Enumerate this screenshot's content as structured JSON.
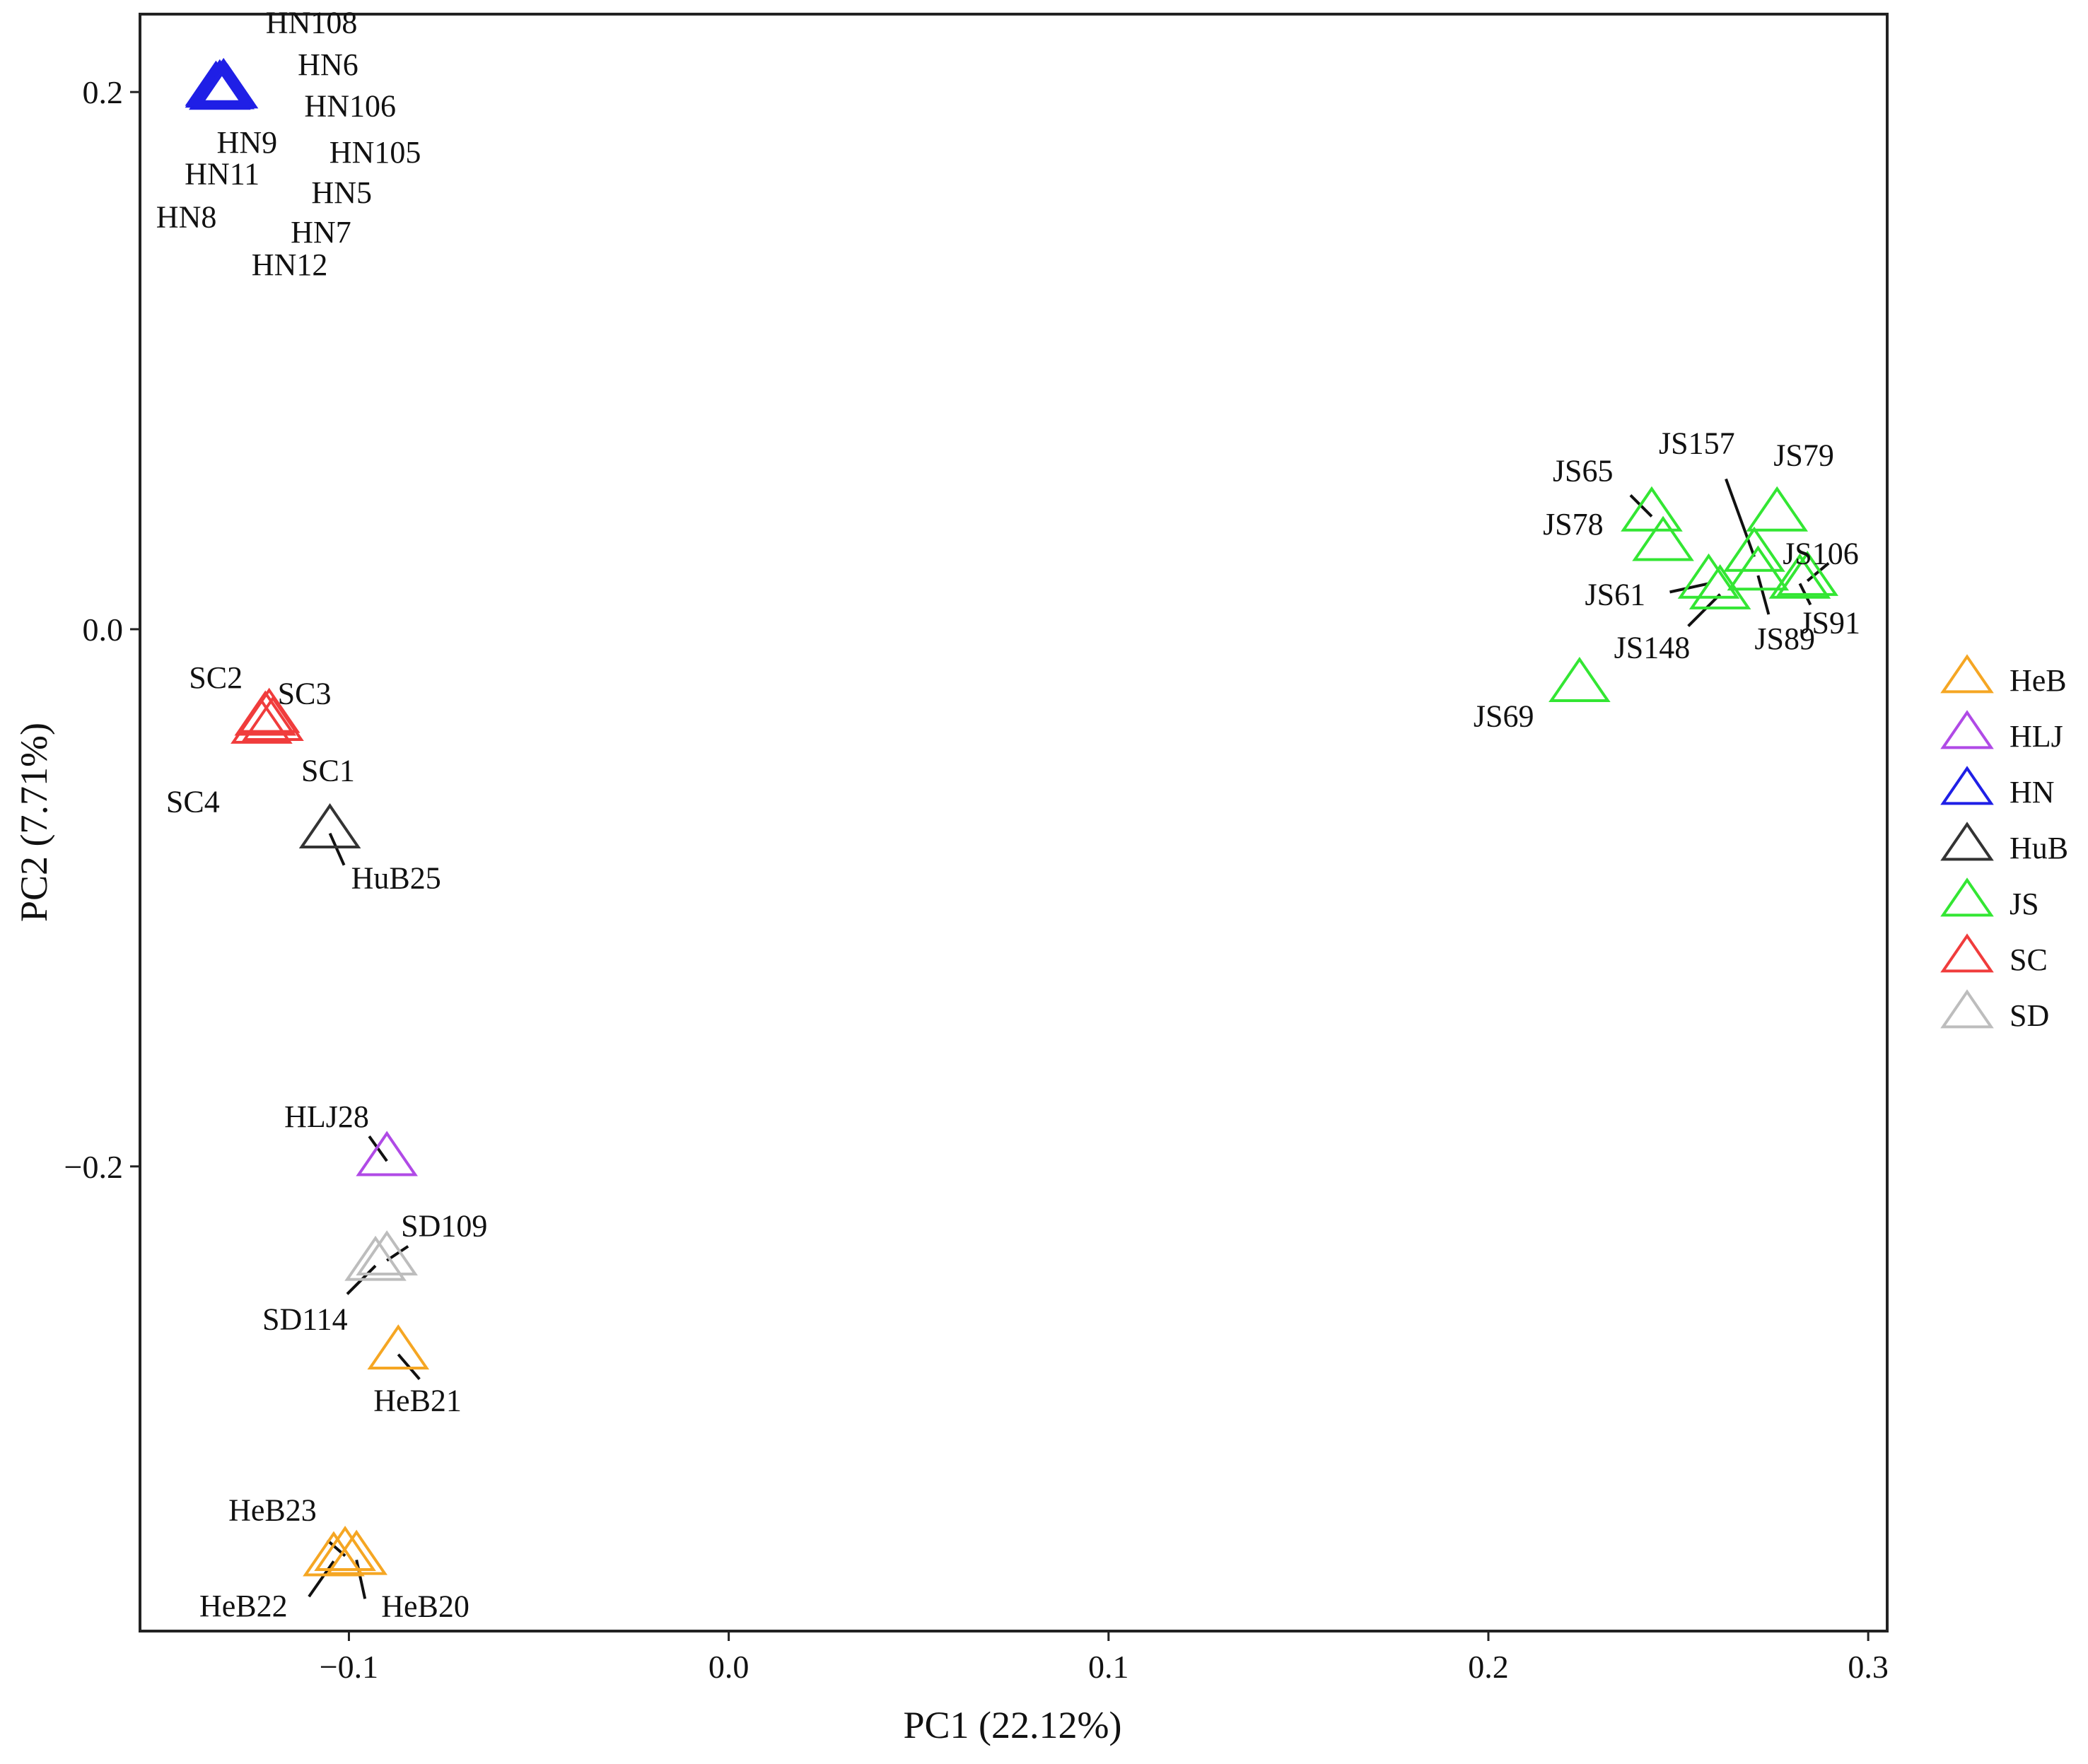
{
  "chart_data": {
    "type": "scatter",
    "title": "",
    "xlabel": "PC1 (22.12%)",
    "ylabel": "PC2 (7.71%)",
    "xlim": [
      -0.155,
      0.305
    ],
    "ylim": [
      -0.373,
      0.229
    ],
    "xticks": [
      -0.1,
      0.0,
      0.1,
      0.2,
      0.3
    ],
    "xtick_labels": [
      "−0.1",
      "0.0",
      "0.1",
      "0.2",
      "0.3"
    ],
    "yticks": [
      -0.2,
      0.0,
      0.2
    ],
    "ytick_labels": [
      "−0.2",
      "0.0",
      "0.2"
    ],
    "grid": false,
    "marker": "open-triangle",
    "legend_position": "right-center",
    "series": [
      {
        "name": "HeB",
        "color": "#f5a623",
        "points": [
          {
            "label": "HeB21",
            "x": -0.087,
            "y": -0.27
          },
          {
            "label": "HeB23",
            "x": -0.101,
            "y": -0.345
          },
          {
            "label": "HeB22",
            "x": -0.104,
            "y": -0.347
          },
          {
            "label": "HeB20",
            "x": -0.098,
            "y": -0.3465
          }
        ]
      },
      {
        "name": "HLJ",
        "color": "#b04ae6",
        "points": [
          {
            "label": "HLJ28",
            "x": -0.09,
            "y": -0.198
          }
        ]
      },
      {
        "name": "HN",
        "color": "#1f1fe6",
        "points": [
          {
            "label": "HN108",
            "x": -0.134,
            "y": 0.201
          },
          {
            "label": "HN6",
            "x": -0.133,
            "y": 0.2
          },
          {
            "label": "HN106",
            "x": -0.135,
            "y": 0.2005
          },
          {
            "label": "HN9",
            "x": -0.132,
            "y": 0.1995
          },
          {
            "label": "HN105",
            "x": -0.134,
            "y": 0.199
          },
          {
            "label": "HN11",
            "x": -0.133,
            "y": 0.2015
          },
          {
            "label": "HN5",
            "x": -0.135,
            "y": 0.1998
          },
          {
            "label": "HN8",
            "x": -0.134,
            "y": 0.2002
          },
          {
            "label": "HN7",
            "x": -0.133,
            "y": 0.1992
          },
          {
            "label": "HN12",
            "x": -0.134,
            "y": 0.2008
          }
        ]
      },
      {
        "name": "HuB",
        "color": "#333333",
        "points": [
          {
            "label": "HuB25",
            "x": -0.105,
            "y": -0.076
          }
        ]
      },
      {
        "name": "JS",
        "color": "#33e633",
        "points": [
          {
            "label": "JS65",
            "x": 0.243,
            "y": 0.042
          },
          {
            "label": "JS157",
            "x": 0.27,
            "y": 0.027
          },
          {
            "label": "JS79",
            "x": 0.276,
            "y": 0.042
          },
          {
            "label": "JS78",
            "x": 0.246,
            "y": 0.031
          },
          {
            "label": "JS106",
            "x": 0.284,
            "y": 0.018
          },
          {
            "label": "JS61",
            "x": 0.258,
            "y": 0.017
          },
          {
            "label": "JS148",
            "x": 0.261,
            "y": 0.013
          },
          {
            "label": "JS89",
            "x": 0.271,
            "y": 0.02
          },
          {
            "label": "JS91",
            "x": 0.282,
            "y": 0.017
          },
          {
            "label": "JS69",
            "x": 0.224,
            "y": -0.0215
          }
        ]
      },
      {
        "name": "SC",
        "color": "#f03c3c",
        "points": [
          {
            "label": "SC2",
            "x": -0.122,
            "y": -0.034
          },
          {
            "label": "SC3",
            "x": -0.121,
            "y": -0.033
          },
          {
            "label": "SC1",
            "x": -0.12,
            "y": -0.036
          },
          {
            "label": "SC4",
            "x": -0.123,
            "y": -0.037
          }
        ]
      },
      {
        "name": "SD",
        "color": "#bdbdbd",
        "points": [
          {
            "label": "SD109",
            "x": -0.09,
            "y": -0.235
          },
          {
            "label": "SD114",
            "x": -0.093,
            "y": -0.237
          }
        ]
      }
    ]
  }
}
